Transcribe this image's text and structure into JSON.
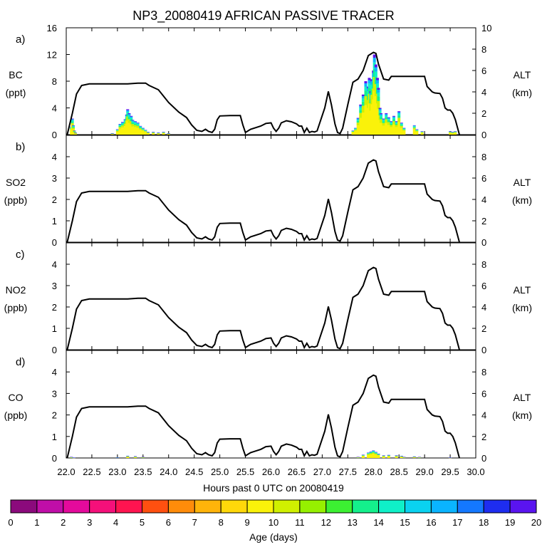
{
  "chart_data": {
    "type": "line",
    "title": "NP3_20080419 AFRICAN PASSIVE TRACER",
    "xlabel": "Hours past 0 UTC on 20080419",
    "xlim": [
      22.0,
      30.0
    ],
    "x_ticks": [
      "22.0",
      "22.5",
      "23.0",
      "23.5",
      "24.0",
      "24.5",
      "25.0",
      "25.5",
      "26.0",
      "26.5",
      "27.0",
      "27.5",
      "28.0",
      "28.5",
      "29.0",
      "29.5",
      "30.0"
    ],
    "altitude_axis": {
      "label": "ALT",
      "units": "(km)",
      "ylim": [
        0,
        10
      ],
      "altitude_km": [
        [
          22.02,
          0.0
        ],
        [
          22.12,
          2.0
        ],
        [
          22.2,
          3.8
        ],
        [
          22.3,
          4.6
        ],
        [
          22.45,
          4.75
        ],
        [
          23.0,
          4.75
        ],
        [
          23.2,
          4.75
        ],
        [
          23.4,
          4.82
        ],
        [
          23.55,
          4.82
        ],
        [
          23.62,
          4.6
        ],
        [
          23.8,
          4.2
        ],
        [
          24.0,
          3.0
        ],
        [
          24.2,
          2.1
        ],
        [
          24.35,
          1.6
        ],
        [
          24.45,
          0.9
        ],
        [
          24.55,
          0.4
        ],
        [
          24.65,
          0.3
        ],
        [
          24.72,
          0.5
        ],
        [
          24.78,
          0.3
        ],
        [
          24.85,
          0.2
        ],
        [
          24.9,
          0.5
        ],
        [
          24.95,
          1.4
        ],
        [
          25.0,
          1.75
        ],
        [
          25.2,
          1.78
        ],
        [
          25.4,
          1.78
        ],
        [
          25.45,
          0.9
        ],
        [
          25.5,
          0.2
        ],
        [
          25.6,
          0.5
        ],
        [
          25.8,
          0.8
        ],
        [
          25.9,
          1.05
        ],
        [
          26.0,
          1.1
        ],
        [
          26.05,
          0.6
        ],
        [
          26.1,
          0.3
        ],
        [
          26.15,
          0.6
        ],
        [
          26.2,
          1.1
        ],
        [
          26.3,
          1.3
        ],
        [
          26.4,
          1.2
        ],
        [
          26.5,
          1.0
        ],
        [
          26.55,
          0.8
        ],
        [
          26.6,
          0.8
        ],
        [
          26.65,
          0.2
        ],
        [
          26.7,
          0.6
        ],
        [
          26.75,
          0.2
        ],
        [
          26.8,
          0.3
        ],
        [
          26.85,
          0.25
        ],
        [
          26.9,
          0.35
        ],
        [
          27.05,
          2.5
        ],
        [
          27.12,
          4.05
        ],
        [
          27.18,
          2.8
        ],
        [
          27.25,
          1.0
        ],
        [
          27.3,
          0.2
        ],
        [
          27.35,
          0.1
        ],
        [
          27.4,
          0.6
        ],
        [
          27.5,
          2.8
        ],
        [
          27.6,
          4.9
        ],
        [
          27.7,
          5.2
        ],
        [
          27.8,
          6.0
        ],
        [
          27.9,
          7.4
        ],
        [
          28.0,
          7.7
        ],
        [
          28.05,
          7.6
        ],
        [
          28.1,
          6.6
        ],
        [
          28.2,
          5.2
        ],
        [
          28.3,
          5.1
        ],
        [
          28.35,
          5.45
        ],
        [
          28.5,
          5.45
        ],
        [
          29.0,
          5.45
        ],
        [
          29.05,
          4.5
        ],
        [
          29.15,
          4.0
        ],
        [
          29.2,
          3.9
        ],
        [
          29.3,
          3.85
        ],
        [
          29.35,
          3.4
        ],
        [
          29.4,
          2.5
        ],
        [
          29.45,
          2.3
        ],
        [
          29.5,
          2.3
        ],
        [
          29.55,
          2.0
        ],
        [
          29.6,
          1.4
        ],
        [
          29.68,
          0.0
        ]
      ]
    },
    "series": [
      {
        "panel": "a)",
        "name": "BC",
        "units": "(ppt)",
        "ylim": [
          0,
          16
        ],
        "y_ticks": [
          "0",
          "4",
          "8",
          "12",
          "16"
        ],
        "values": [
          [
            22.1,
            1.2
          ],
          [
            22.12,
            2.4
          ],
          [
            22.14,
            1.4
          ],
          [
            22.16,
            0.6
          ],
          [
            22.18,
            0.3
          ],
          [
            22.9,
            0.2
          ],
          [
            23.0,
            0.8
          ],
          [
            23.05,
            1.6
          ],
          [
            23.1,
            1.9
          ],
          [
            23.15,
            2.3
          ],
          [
            23.18,
            3.0
          ],
          [
            23.2,
            3.8
          ],
          [
            23.23,
            3.2
          ],
          [
            23.27,
            2.8
          ],
          [
            23.3,
            2.2
          ],
          [
            23.35,
            2.0
          ],
          [
            23.4,
            1.8
          ],
          [
            23.45,
            1.3
          ],
          [
            23.5,
            1.0
          ],
          [
            23.55,
            0.7
          ],
          [
            23.6,
            0.4
          ],
          [
            23.7,
            0.4
          ],
          [
            23.8,
            0.3
          ],
          [
            23.9,
            0.4
          ],
          [
            24.0,
            0.2
          ],
          [
            27.6,
            0.6
          ],
          [
            27.65,
            1.0
          ],
          [
            27.7,
            2.5
          ],
          [
            27.75,
            4.5
          ],
          [
            27.8,
            6.0
          ],
          [
            27.85,
            8.0
          ],
          [
            27.9,
            7.2
          ],
          [
            27.92,
            8.5
          ],
          [
            27.95,
            6.5
          ],
          [
            27.97,
            8.3
          ],
          [
            28.0,
            9.6
          ],
          [
            28.02,
            12.0
          ],
          [
            28.05,
            10.5
          ],
          [
            28.08,
            8.5
          ],
          [
            28.1,
            7.0
          ],
          [
            28.13,
            4.0
          ],
          [
            28.15,
            3.2
          ],
          [
            28.2,
            2.4
          ],
          [
            28.25,
            3.2
          ],
          [
            28.3,
            2.6
          ],
          [
            28.35,
            2.0
          ],
          [
            28.4,
            2.8
          ],
          [
            28.45,
            2.0
          ],
          [
            28.5,
            3.5
          ],
          [
            28.55,
            1.8
          ],
          [
            28.6,
            1.0
          ],
          [
            28.8,
            1.4
          ],
          [
            28.85,
            0.8
          ],
          [
            28.95,
            0.5
          ],
          [
            29.5,
            0.5
          ],
          [
            29.55,
            0.4
          ],
          [
            29.6,
            0.5
          ]
        ]
      },
      {
        "panel": "b)",
        "name": "SO2",
        "units": "(ppb)",
        "ylim": [
          0,
          5
        ],
        "y_ticks": [
          "0",
          "1",
          "2",
          "3",
          "4"
        ],
        "values": []
      },
      {
        "panel": "c)",
        "name": "NO2",
        "units": "(ppb)",
        "ylim": [
          0,
          5
        ],
        "y_ticks": [
          "0",
          "1",
          "2",
          "3",
          "4"
        ],
        "values": []
      },
      {
        "panel": "d)",
        "name": "CO",
        "units": "(ppb)",
        "ylim": [
          0,
          5
        ],
        "y_ticks": [
          "0",
          "1",
          "2",
          "3",
          "4"
        ],
        "values": [
          [
            22.1,
            0.05
          ],
          [
            22.15,
            0.02
          ],
          [
            23.0,
            0.03
          ],
          [
            23.2,
            0.1
          ],
          [
            23.35,
            0.08
          ],
          [
            23.5,
            0.05
          ],
          [
            27.7,
            0.05
          ],
          [
            27.8,
            0.15
          ],
          [
            27.9,
            0.25
          ],
          [
            27.95,
            0.3
          ],
          [
            28.0,
            0.35
          ],
          [
            28.05,
            0.28
          ],
          [
            28.1,
            0.2
          ],
          [
            28.2,
            0.12
          ],
          [
            28.3,
            0.14
          ],
          [
            28.45,
            0.12
          ],
          [
            28.55,
            0.1
          ],
          [
            28.6,
            0.05
          ],
          [
            28.8,
            0.07
          ],
          [
            28.9,
            0.05
          ],
          [
            29.5,
            0.02
          ]
        ]
      }
    ],
    "colorbar": {
      "label": "Age (days)",
      "tick_labels": [
        "0",
        "1",
        "2",
        "3",
        "4",
        "5",
        "6",
        "7",
        "8",
        "9",
        "10",
        "11",
        "12",
        "13",
        "14",
        "15",
        "16",
        "17",
        "18",
        "19",
        "20"
      ],
      "colors": [
        "#8b0a7c",
        "#c00ea8",
        "#e40a9c",
        "#f5107a",
        "#ff1450",
        "#ff5010",
        "#ff8c0a",
        "#ffb40a",
        "#ffd80a",
        "#faf20a",
        "#d0f000",
        "#96f000",
        "#3cf032",
        "#14f08c",
        "#0ff0c8",
        "#0ad2f0",
        "#0ab4ff",
        "#1478ff",
        "#1e2df0",
        "#5a14f0"
      ]
    }
  }
}
